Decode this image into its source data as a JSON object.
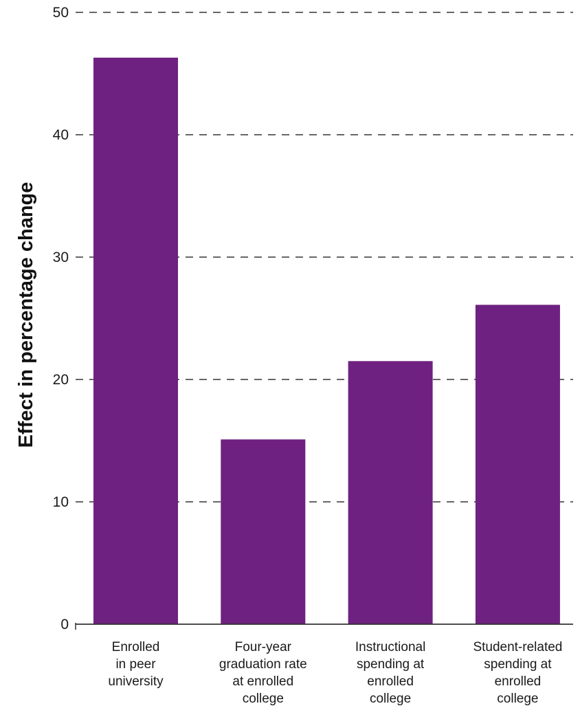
{
  "chart_data": {
    "type": "bar",
    "title": "",
    "xlabel": "",
    "ylabel": "Effect in percentage change",
    "ylim": [
      0,
      50
    ],
    "yticks": [
      0,
      10,
      20,
      30,
      40,
      50
    ],
    "grid": true,
    "categories": [
      [
        "Enrolled",
        "in peer",
        "university"
      ],
      [
        "Four-year",
        "graduation rate",
        "at enrolled",
        "college"
      ],
      [
        "Instructional",
        "spending at",
        "enrolled",
        "college"
      ],
      [
        "Student-related",
        "spending at",
        "enrolled",
        "college"
      ]
    ],
    "values": [
      46.3,
      15.1,
      21.5,
      26.1
    ],
    "bar_color": "#6e2180",
    "grid_color": "#333333",
    "axis_color": "#333333"
  }
}
